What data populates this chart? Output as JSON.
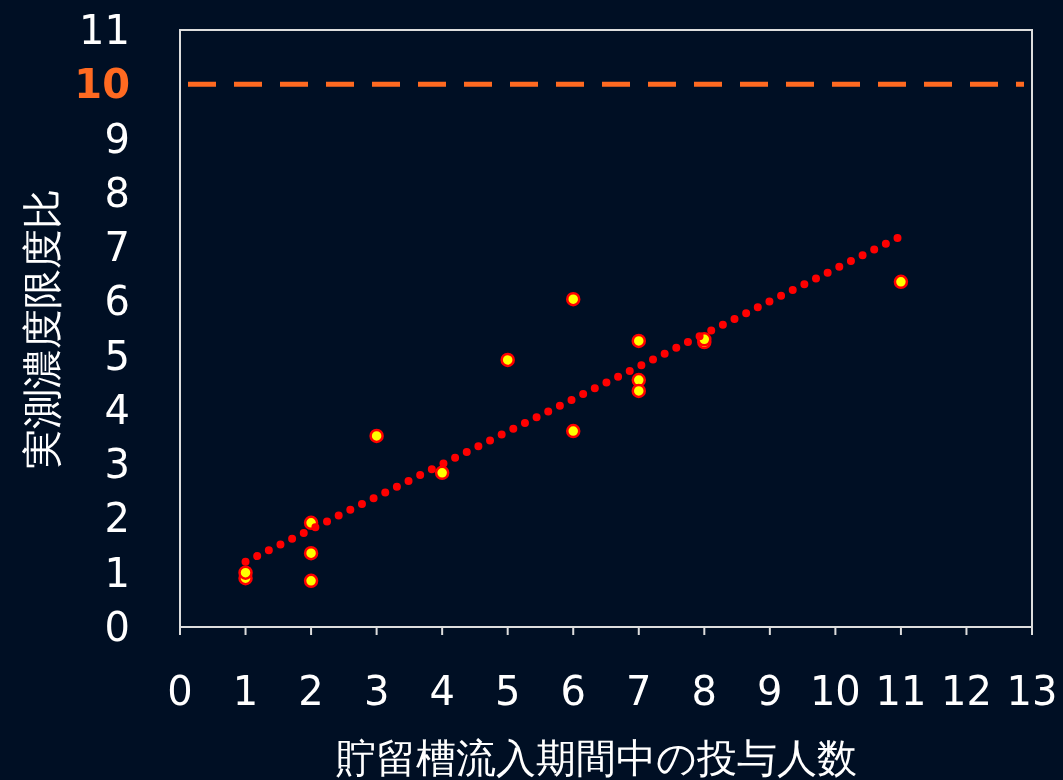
{
  "chart_data": {
    "type": "scatter",
    "xlabel": "貯留槽流入期間中の投与人数",
    "ylabel": "実測濃度限度比",
    "xlim": [
      0,
      13
    ],
    "xticks": [
      0,
      1,
      2,
      3,
      4,
      5,
      6,
      7,
      8,
      9,
      10,
      11,
      12,
      13
    ],
    "ylim": [
      0,
      11
    ],
    "yticks": [
      0,
      1,
      2,
      3,
      4,
      5,
      6,
      7,
      8,
      9,
      10,
      11
    ],
    "series": [
      {
        "type": "scatter",
        "color": "#ffff00",
        "x": [
          1,
          1,
          2,
          2,
          2,
          3,
          4,
          5,
          6,
          6,
          7,
          7,
          7,
          8,
          8,
          11
        ],
        "values": [
          0.9,
          1.0,
          1.92,
          1.36,
          0.85,
          3.52,
          2.84,
          4.92,
          6.04,
          3.61,
          5.27,
          4.55,
          4.35,
          5.25,
          5.3,
          6.36
        ],
        "marker": "circle"
      },
      {
        "type": "line",
        "color": "#ff0000",
        "x": [
          1,
          11
        ],
        "values": [
          1.2,
          7.2
        ],
        "line_style": "dotted"
      }
    ],
    "ref_lines": [
      {
        "axis": "y",
        "value": 10,
        "color": "#ff6a21",
        "line_style": "dashed"
      }
    ],
    "grid": false
  }
}
